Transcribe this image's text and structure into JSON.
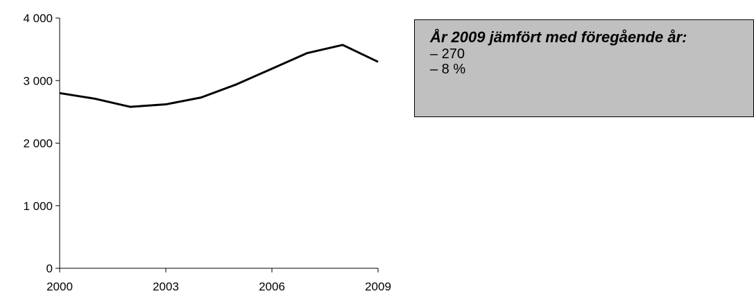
{
  "chart_data": {
    "type": "line",
    "title": "",
    "xlabel": "",
    "ylabel": "",
    "x": [
      2000,
      2001,
      2002,
      2003,
      2004,
      2005,
      2006,
      2007,
      2008,
      2009
    ],
    "series": [
      {
        "values": [
          2800,
          2710,
          2580,
          2620,
          2730,
          2940,
          3190,
          3440,
          3570,
          3300
        ]
      }
    ],
    "xlim": [
      2000,
      2009
    ],
    "ylim": [
      0,
      4000
    ],
    "x_ticks": [
      2000,
      2003,
      2006,
      2009
    ],
    "y_ticks": [
      0,
      1000,
      2000,
      3000,
      4000
    ],
    "x_tick_labels": [
      "2000",
      "2003",
      "2006",
      "2009"
    ],
    "y_tick_labels": [
      "0",
      "1 000",
      "2 000",
      "3 000",
      "4 000"
    ],
    "grid": false,
    "line_color": "#000000"
  },
  "info_box": {
    "title": "År 2009 jämfört med föregående år:",
    "lines": [
      "– 270",
      "– 8 %"
    ],
    "background": "#c0c0c0"
  }
}
